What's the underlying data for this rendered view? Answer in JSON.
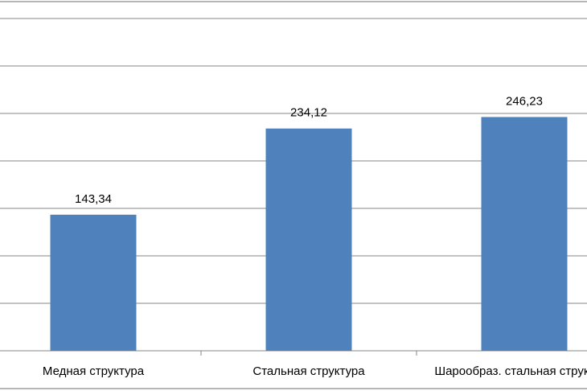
{
  "chart_data": {
    "type": "bar",
    "categories": [
      "Медная структура",
      "Стальная структура",
      "Шарообраз.  стальная структура"
    ],
    "values": [
      143.34,
      234.12,
      246.23
    ],
    "value_labels": [
      "143,34",
      "234,12",
      "246,23"
    ],
    "color": "#4f81bd",
    "ylim": [
      0,
      350
    ],
    "yticks": [
      0,
      50,
      100,
      150,
      200,
      250,
      300,
      350
    ],
    "grid": true
  }
}
